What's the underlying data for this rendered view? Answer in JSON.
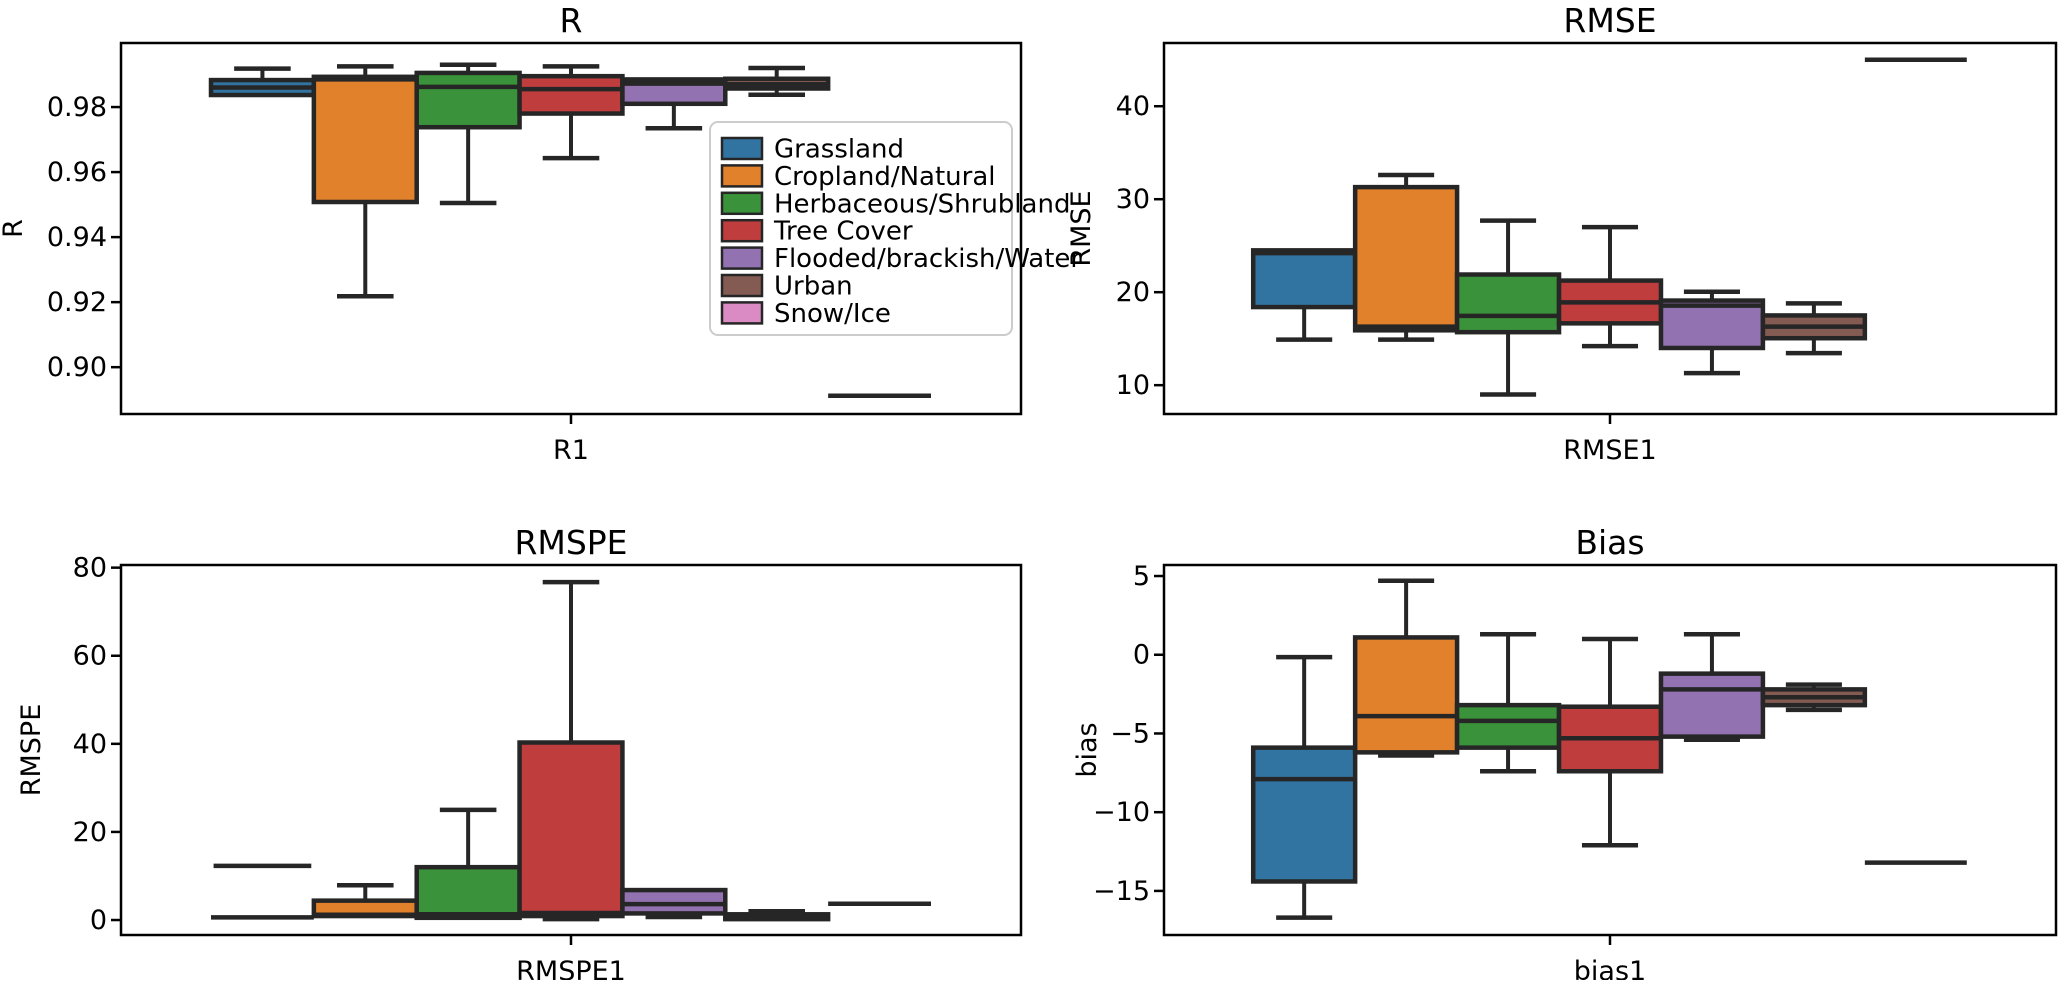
{
  "figure": {
    "background": "#ffffff",
    "spine_color": "#000000",
    "box_edge_color": "#262626"
  },
  "legend": {
    "entries": [
      {
        "label": "Grassland",
        "color": "#3274a1"
      },
      {
        "label": "Cropland/Natural",
        "color": "#e1812c"
      },
      {
        "label": "Herbaceous/Shrubland",
        "color": "#3a923a"
      },
      {
        "label": "Tree Cover",
        "color": "#c03d3e"
      },
      {
        "label": "Flooded/brackish/Water",
        "color": "#9372b2"
      },
      {
        "label": "Urban",
        "color": "#845b52"
      },
      {
        "label": "Snow/Ice",
        "color": "#da8bc3"
      }
    ]
  },
  "chart_data": [
    {
      "type": "box",
      "title": "R",
      "ylabel": "R",
      "xtick_label": "R1",
      "ylim": [
        0.8856,
        0.9997
      ],
      "grid": false,
      "yticks": [
        {
          "v": 0.98,
          "label": "0.98"
        },
        {
          "v": 0.96,
          "label": "0.96"
        },
        {
          "v": 0.94,
          "label": "0.94"
        },
        {
          "v": 0.92,
          "label": "0.92"
        },
        {
          "v": 0.9,
          "label": "0.90"
        }
      ],
      "groups": [
        {
          "label": "Grassland",
          "color": "#3274a1",
          "whislo": 0.9837,
          "q1": 0.9837,
          "med": 0.986,
          "q3": 0.9883,
          "whishi": 0.9918,
          "fliers": []
        },
        {
          "label": "Cropland/Natural",
          "color": "#e1812c",
          "whislo": 0.9218,
          "q1": 0.9508,
          "med": 0.9885,
          "q3": 0.9893,
          "whishi": 0.9925,
          "fliers": []
        },
        {
          "label": "Herbaceous/Shrubland",
          "color": "#3a923a",
          "whislo": 0.9505,
          "q1": 0.9738,
          "med": 0.9862,
          "q3": 0.9905,
          "whishi": 0.993,
          "fliers": []
        },
        {
          "label": "Tree Cover",
          "color": "#c03d3e",
          "whislo": 0.9643,
          "q1": 0.978,
          "med": 0.9855,
          "q3": 0.9895,
          "whishi": 0.9925,
          "fliers": []
        },
        {
          "label": "Flooded/brackish/Water",
          "color": "#9372b2",
          "whislo": 0.9735,
          "q1": 0.981,
          "med": 0.9872,
          "q3": 0.9885,
          "whishi": 0.989,
          "fliers": []
        },
        {
          "label": "Urban",
          "color": "#845b52",
          "whislo": 0.9838,
          "q1": 0.9857,
          "med": 0.987,
          "q3": 0.9887,
          "whishi": 0.992,
          "fliers": []
        },
        {
          "label": "Snow/Ice",
          "color": "#da8bc3",
          "whislo": 0.8912,
          "q1": 0.8912,
          "med": 0.8912,
          "q3": 0.8912,
          "whishi": 0.8912,
          "fliers": []
        }
      ]
    },
    {
      "type": "box",
      "title": "RMSE",
      "ylabel": "RMSE",
      "xtick_label": "RMSE1",
      "ylim": [
        6.9,
        46.8
      ],
      "grid": false,
      "yticks": [
        {
          "v": 40,
          "label": "40"
        },
        {
          "v": 30,
          "label": "30"
        },
        {
          "v": 20,
          "label": "20"
        },
        {
          "v": 10,
          "label": "10"
        }
      ],
      "groups": [
        {
          "label": "Grassland",
          "color": "#3274a1",
          "whislo": 14.9,
          "q1": 18.4,
          "med": 24.2,
          "q3": 24.5,
          "whishi": 24.5,
          "fliers": []
        },
        {
          "label": "Cropland/Natural",
          "color": "#e1812c",
          "whislo": 14.9,
          "q1": 15.9,
          "med": 16.3,
          "q3": 31.3,
          "whishi": 32.6,
          "fliers": []
        },
        {
          "label": "Herbaceous/Shrubland",
          "color": "#3a923a",
          "whislo": 9.0,
          "q1": 15.7,
          "med": 17.45,
          "q3": 21.9,
          "whishi": 27.7,
          "fliers": []
        },
        {
          "label": "Tree Cover",
          "color": "#c03d3e",
          "whislo": 14.2,
          "q1": 16.65,
          "med": 18.9,
          "q3": 21.25,
          "whishi": 27.0,
          "fliers": []
        },
        {
          "label": "Flooded/brackish/Water",
          "color": "#9372b2",
          "whislo": 11.3,
          "q1": 14.0,
          "med": 18.55,
          "q3": 19.1,
          "whishi": 20.05,
          "fliers": []
        },
        {
          "label": "Urban",
          "color": "#845b52",
          "whislo": 13.45,
          "q1": 15.05,
          "med": 16.3,
          "q3": 17.5,
          "whishi": 18.8,
          "fliers": []
        },
        {
          "label": "Snow/Ice",
          "color": "#da8bc3",
          "whislo": 45.0,
          "q1": 45.0,
          "med": 45.0,
          "q3": 45.0,
          "whishi": 45.0,
          "fliers": []
        }
      ]
    },
    {
      "type": "box",
      "title": "RMSPE",
      "ylabel": "RMSPE",
      "xtick_label": "RMSPE1",
      "ylim": [
        -3.4,
        80.6
      ],
      "grid": false,
      "yticks": [
        {
          "v": 80,
          "label": "80"
        },
        {
          "v": 60,
          "label": "60"
        },
        {
          "v": 40,
          "label": "40"
        },
        {
          "v": 20,
          "label": "20"
        },
        {
          "v": 0,
          "label": "0"
        }
      ],
      "groups": [
        {
          "label": "Grassland",
          "color": "#3274a1",
          "whislo": 0.6,
          "q1": 0.6,
          "med": 0.6,
          "q3": 0.6,
          "whishi": 0.6,
          "fliers": [
            12.3
          ]
        },
        {
          "label": "Cropland/Natural",
          "color": "#e1812c",
          "whislo": 0.3,
          "q1": 0.9,
          "med": 1.2,
          "q3": 4.4,
          "whishi": 7.9,
          "fliers": []
        },
        {
          "label": "Herbaceous/Shrubland",
          "color": "#3a923a",
          "whislo": 0.1,
          "q1": 0.5,
          "med": 1.3,
          "q3": 12.0,
          "whishi": 25.0,
          "fliers": []
        },
        {
          "label": "Tree Cover",
          "color": "#c03d3e",
          "whislo": 0.2,
          "q1": 0.9,
          "med": 1.6,
          "q3": 40.3,
          "whishi": 76.7,
          "fliers": []
        },
        {
          "label": "Flooded/brackish/Water",
          "color": "#9372b2",
          "whislo": 0.7,
          "q1": 1.5,
          "med": 3.6,
          "q3": 6.8,
          "whishi": 7.4,
          "fliers": []
        },
        {
          "label": "Urban",
          "color": "#845b52",
          "whislo": 0.0,
          "q1": 0.2,
          "med": 0.6,
          "q3": 1.3,
          "whishi": 2.0,
          "fliers": []
        },
        {
          "label": "Snow/Ice",
          "color": "#da8bc3",
          "whislo": 3.7,
          "q1": 3.7,
          "med": 3.7,
          "q3": 3.7,
          "whishi": 3.7,
          "fliers": []
        }
      ]
    },
    {
      "type": "box",
      "title": "Bias",
      "ylabel": "bias",
      "xtick_label": "bias1",
      "ylim": [
        -17.8,
        5.7
      ],
      "grid": false,
      "yticks": [
        {
          "v": 5,
          "label": "5"
        },
        {
          "v": 0,
          "label": "0"
        },
        {
          "v": -5,
          "label": "−5"
        },
        {
          "v": -10,
          "label": "−10"
        },
        {
          "v": -15,
          "label": "−15"
        }
      ],
      "groups": [
        {
          "label": "Grassland",
          "color": "#3274a1",
          "whislo": -16.7,
          "q1": -14.4,
          "med": -7.9,
          "q3": -5.9,
          "whishi": -0.15,
          "fliers": []
        },
        {
          "label": "Cropland/Natural",
          "color": "#e1812c",
          "whislo": -6.4,
          "q1": -6.2,
          "med": -3.9,
          "q3": 1.1,
          "whishi": 4.7,
          "fliers": []
        },
        {
          "label": "Herbaceous/Shrubland",
          "color": "#3a923a",
          "whislo": -7.4,
          "q1": -5.9,
          "med": -4.2,
          "q3": -3.2,
          "whishi": 1.3,
          "fliers": []
        },
        {
          "label": "Tree Cover",
          "color": "#c03d3e",
          "whislo": -12.1,
          "q1": -7.4,
          "med": -5.3,
          "q3": -3.3,
          "whishi": 1.0,
          "fliers": []
        },
        {
          "label": "Flooded/brackish/Water",
          "color": "#9372b2",
          "whislo": -5.4,
          "q1": -5.2,
          "med": -2.2,
          "q3": -1.2,
          "whishi": 1.3,
          "fliers": []
        },
        {
          "label": "Urban",
          "color": "#845b52",
          "whislo": -3.5,
          "q1": -3.2,
          "med": -2.7,
          "q3": -2.2,
          "whishi": -1.9,
          "fliers": []
        },
        {
          "label": "Snow/Ice",
          "color": "#da8bc3",
          "whislo": -13.2,
          "q1": -13.2,
          "med": -13.2,
          "q3": -13.2,
          "whishi": -13.2,
          "fliers": []
        }
      ]
    }
  ]
}
